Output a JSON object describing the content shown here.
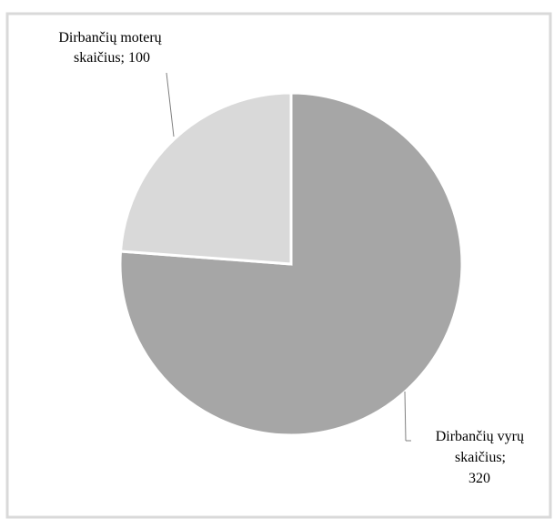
{
  "chart_data": {
    "type": "pie",
    "title": "",
    "slices": [
      {
        "label_lines": [
          "Dirbančių moterų",
          "skaičius; 100"
        ],
        "value": 100,
        "color": "#d9d9d9"
      },
      {
        "label_lines": [
          "Dirbančių vyrų",
          "skaičius;",
          "320"
        ],
        "value": 320,
        "color": "#a6a6a6"
      }
    ],
    "colors": {
      "frame": "#d9d9d9",
      "slice_border": "#ffffff",
      "leader_line": "#7f7f7f"
    }
  }
}
